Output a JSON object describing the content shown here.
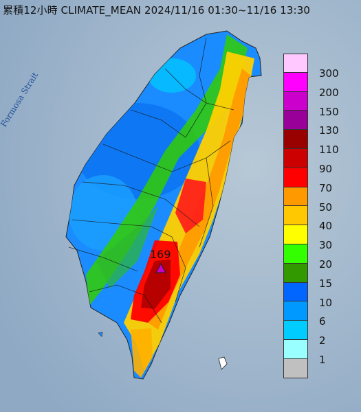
{
  "title": "累積12小時 CLIMATE_MEAN 2024/11/16 01:30~11/16 13:30",
  "map": {
    "sea_label": "Formosa Strait",
    "peak_value": "169",
    "peak_marker_color": "#c800c8"
  },
  "legend": {
    "items": [
      {
        "label": "300",
        "color": "#ffc8ff"
      },
      {
        "label": "200",
        "color": "#ff00ff"
      },
      {
        "label": "150",
        "color": "#cc00cc"
      },
      {
        "label": "130",
        "color": "#990099"
      },
      {
        "label": "110",
        "color": "#990000"
      },
      {
        "label": "90",
        "color": "#cc0000"
      },
      {
        "label": "70",
        "color": "#ff0000"
      },
      {
        "label": "50",
        "color": "#ff9900"
      },
      {
        "label": "40",
        "color": "#ffc800"
      },
      {
        "label": "30",
        "color": "#ffff00"
      },
      {
        "label": "20",
        "color": "#33ff00"
      },
      {
        "label": "15",
        "color": "#339900"
      },
      {
        "label": "10",
        "color": "#0066ff"
      },
      {
        "label": "6",
        "color": "#0099ff"
      },
      {
        "label": "2",
        "color": "#00ccff"
      },
      {
        "label": "1",
        "color": "#99ffff"
      },
      {
        "label": "",
        "color": "#c0c0c0"
      }
    ]
  }
}
